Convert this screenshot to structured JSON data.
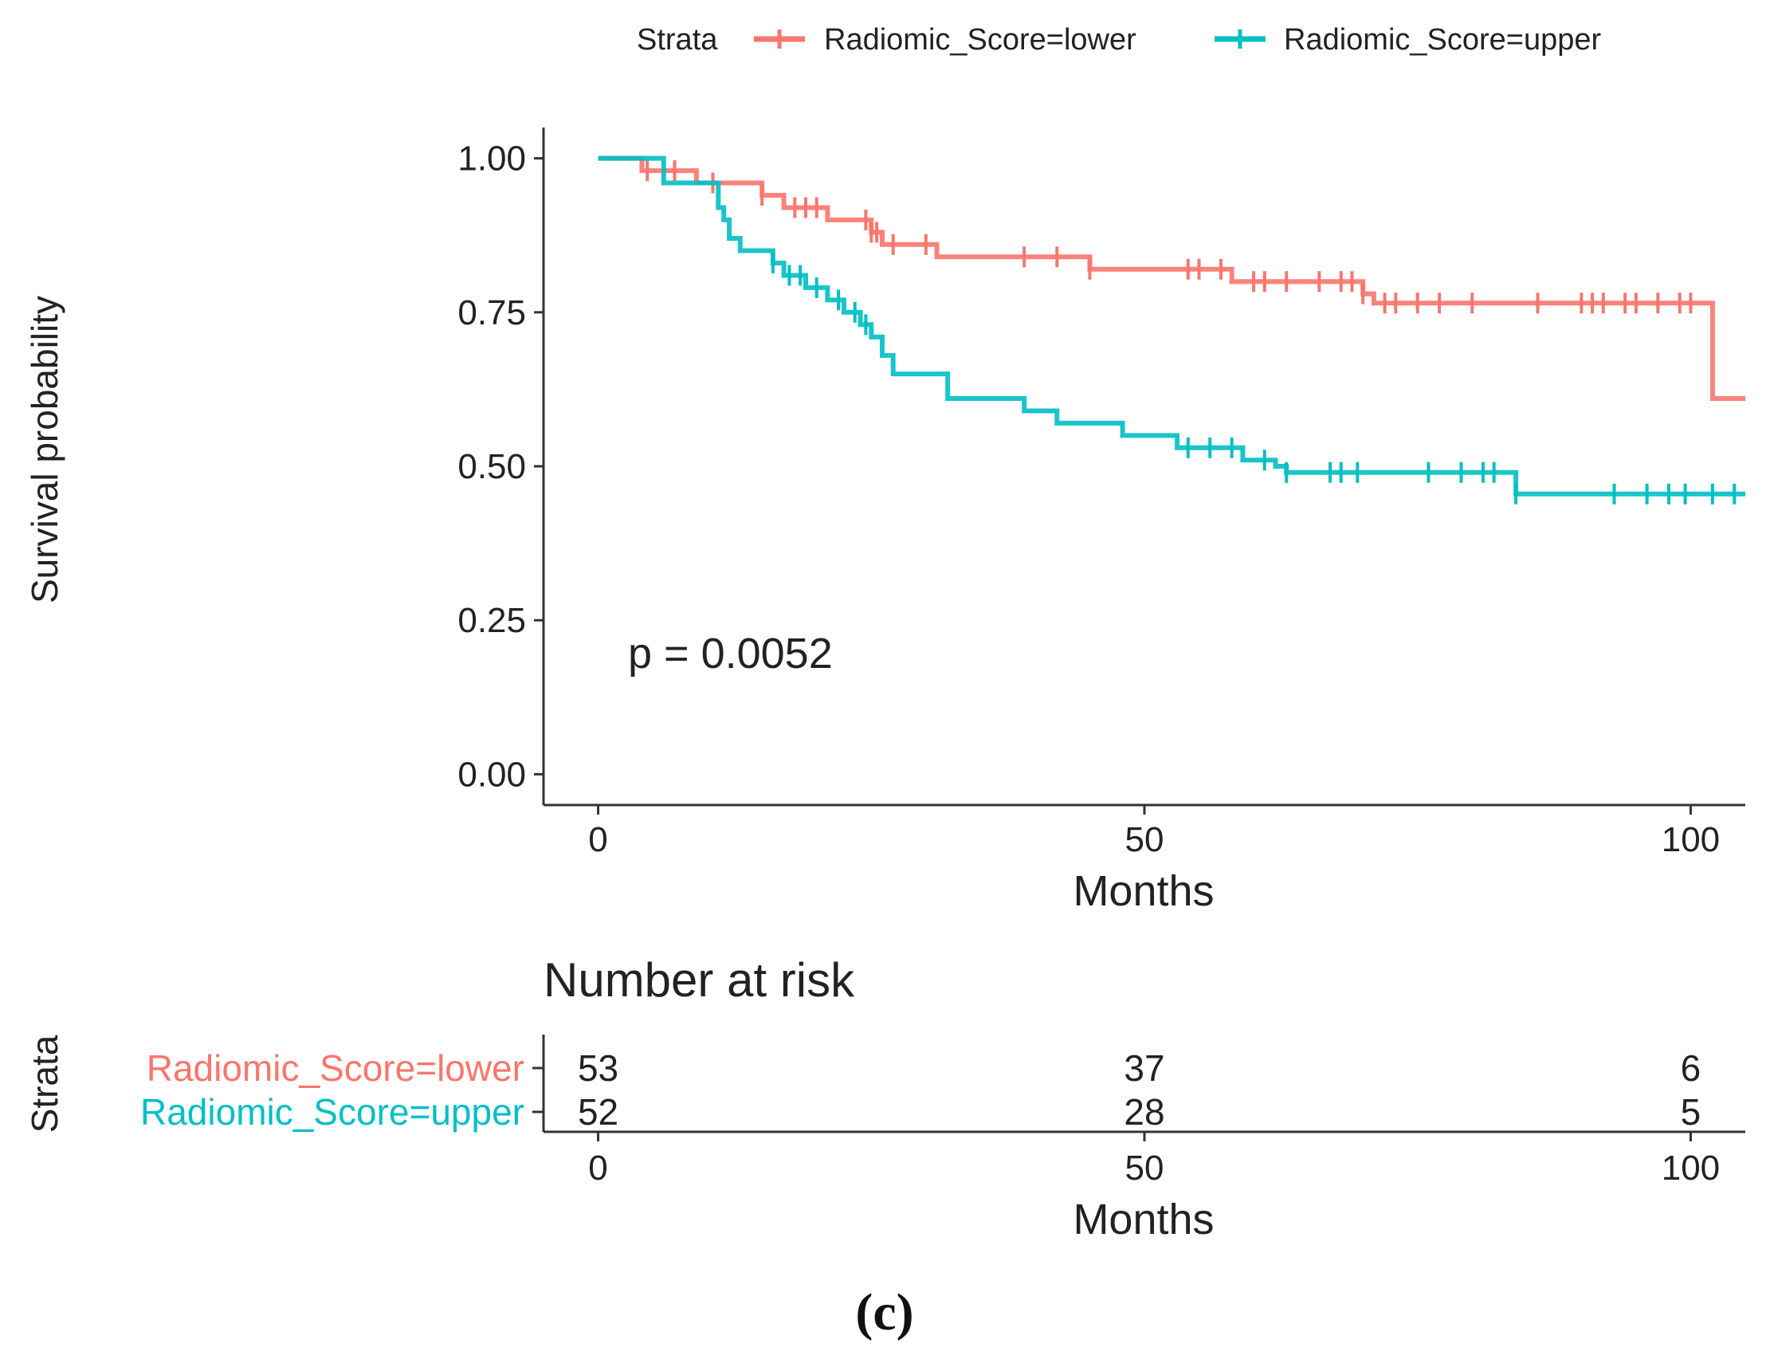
{
  "chart_data": [
    {
      "type": "line",
      "title": "",
      "xlabel": "Months",
      "ylabel": "Survival probability",
      "xlim": [
        -5,
        105
      ],
      "ylim": [
        -0.05,
        1.05
      ],
      "x_ticks": [
        0,
        50,
        100
      ],
      "y_ticks": [
        "0.00",
        "0.25",
        "0.50",
        "0.75",
        "1.00"
      ],
      "grid": false,
      "legend": {
        "position": "top",
        "title": "Strata",
        "entries": [
          "Radiomic_Score=lower",
          "Radiomic_Score=upper"
        ]
      },
      "annotation": "p = 0.0052",
      "series": [
        {
          "name": "Radiomic_Score=lower",
          "color": "#F8766D",
          "steps": [
            [
              0,
              1.0
            ],
            [
              4,
              0.98
            ],
            [
              9,
              0.96
            ],
            [
              15,
              0.94
            ],
            [
              17,
              0.92
            ],
            [
              21,
              0.9
            ],
            [
              25,
              0.88
            ],
            [
              26,
              0.86
            ],
            [
              31,
              0.84
            ],
            [
              45,
              0.82
            ],
            [
              58,
              0.8
            ],
            [
              70,
              0.78
            ],
            [
              71,
              0.765
            ],
            [
              102,
              0.61
            ],
            [
              105,
              0.61
            ]
          ],
          "censor_times": [
            4.5,
            7,
            10.5,
            15,
            18,
            19,
            20,
            24.5,
            25,
            25.5,
            27,
            30,
            39,
            42,
            45,
            54,
            55,
            57,
            60,
            61,
            63,
            66,
            68,
            69,
            70,
            72,
            73,
            75,
            77,
            80,
            86,
            90,
            91,
            92,
            94,
            95,
            97,
            99,
            100
          ]
        },
        {
          "name": "Radiomic_Score=upper",
          "color": "#00BFC4",
          "steps": [
            [
              0,
              1.0
            ],
            [
              6,
              0.96
            ],
            [
              11,
              0.92
            ],
            [
              11.5,
              0.9
            ],
            [
              12,
              0.87
            ],
            [
              13,
              0.85
            ],
            [
              16,
              0.83
            ],
            [
              17,
              0.81
            ],
            [
              19,
              0.79
            ],
            [
              21,
              0.77
            ],
            [
              22.5,
              0.75
            ],
            [
              24,
              0.73
            ],
            [
              25,
              0.71
            ],
            [
              26,
              0.68
            ],
            [
              27,
              0.65
            ],
            [
              32,
              0.61
            ],
            [
              39,
              0.59
            ],
            [
              42,
              0.57
            ],
            [
              48,
              0.55
            ],
            [
              53,
              0.53
            ],
            [
              59,
              0.51
            ],
            [
              62,
              0.5
            ],
            [
              63,
              0.49
            ],
            [
              84,
              0.455
            ],
            [
              105,
              0.455
            ]
          ],
          "censor_times": [
            16,
            17.5,
            18.5,
            20,
            22,
            23.5,
            24.5,
            54,
            56,
            58,
            61,
            63,
            67,
            68,
            69.5,
            76,
            79,
            81,
            82,
            84,
            93,
            96,
            98,
            99.5,
            102,
            104
          ]
        }
      ]
    },
    {
      "type": "table",
      "title": "Number at risk",
      "xlabel": "Months",
      "ylabel": "Strata",
      "xlim": [
        -5,
        105
      ],
      "x_ticks": [
        0,
        50,
        100
      ],
      "rows": [
        {
          "name": "Radiomic_Score=lower",
          "color": "#F8766D",
          "values": [
            53,
            37,
            6
          ]
        },
        {
          "name": "Radiomic_Score=upper",
          "color": "#00BFC4",
          "values": [
            52,
            28,
            5
          ]
        }
      ]
    }
  ],
  "panel_label": "(c)"
}
